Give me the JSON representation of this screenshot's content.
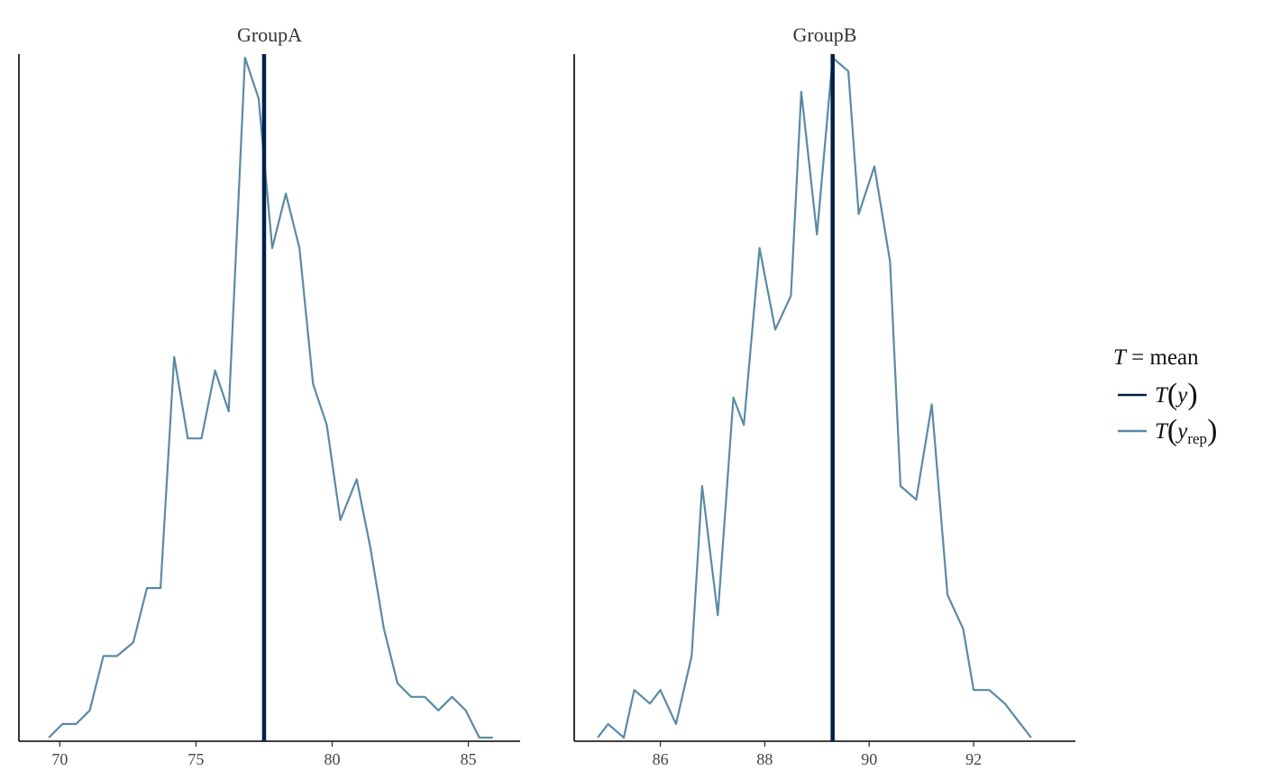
{
  "chart_data": {
    "type": "line",
    "title": "",
    "legend": {
      "title": "T = mean",
      "position": "right",
      "entries": [
        {
          "key": "T(y)",
          "color": "#011f4b"
        },
        {
          "key": "T(y_rep)",
          "color": "#5a8aa5"
        }
      ]
    },
    "colors": {
      "observed": "#011f4b",
      "replicated": "#5a8aa5"
    },
    "panels": [
      {
        "name": "GroupA",
        "xlim": [
          68.5,
          86.9
        ],
        "ylim": [
          0,
          1
        ],
        "xticks": [
          70,
          75,
          80,
          85
        ],
        "observed": 77.5,
        "x": [
          69.6,
          70.1,
          70.6,
          71.1,
          71.6,
          72.1,
          72.7,
          73.2,
          73.7,
          74.2,
          74.7,
          75.2,
          75.7,
          76.2,
          76.8,
          77.3,
          77.8,
          78.3,
          78.8,
          79.3,
          79.8,
          80.3,
          80.9,
          81.4,
          81.9,
          82.4,
          82.9,
          83.4,
          83.9,
          84.4,
          84.9,
          85.4,
          85.9
        ],
        "y": [
          0.0,
          0.02,
          0.02,
          0.04,
          0.12,
          0.12,
          0.14,
          0.22,
          0.22,
          0.56,
          0.44,
          0.44,
          0.54,
          0.48,
          1.0,
          0.94,
          0.72,
          0.8,
          0.72,
          0.52,
          0.46,
          0.32,
          0.38,
          0.28,
          0.16,
          0.08,
          0.06,
          0.06,
          0.04,
          0.06,
          0.04,
          0.0,
          0.0
        ]
      },
      {
        "name": "GroupB",
        "xlim": [
          84.35,
          93.95
        ],
        "ylim": [
          0,
          1
        ],
        "xticks": [
          86,
          88,
          90,
          92
        ],
        "observed": 89.3,
        "x": [
          84.8,
          85.0,
          85.3,
          85.5,
          85.8,
          86.0,
          86.3,
          86.6,
          86.8,
          87.1,
          87.4,
          87.6,
          87.9,
          88.2,
          88.5,
          88.7,
          89.0,
          89.3,
          89.6,
          89.8,
          90.1,
          90.4,
          90.6,
          90.9,
          91.2,
          91.5,
          91.8,
          92.0,
          92.3,
          92.6,
          92.8,
          93.1
        ],
        "y": [
          0.0,
          0.02,
          0.0,
          0.07,
          0.05,
          0.07,
          0.02,
          0.12,
          0.37,
          0.18,
          0.5,
          0.46,
          0.72,
          0.6,
          0.65,
          0.95,
          0.74,
          1.0,
          0.98,
          0.77,
          0.84,
          0.7,
          0.37,
          0.35,
          0.49,
          0.21,
          0.16,
          0.07,
          0.07,
          0.05,
          0.03,
          0.0
        ]
      }
    ]
  }
}
